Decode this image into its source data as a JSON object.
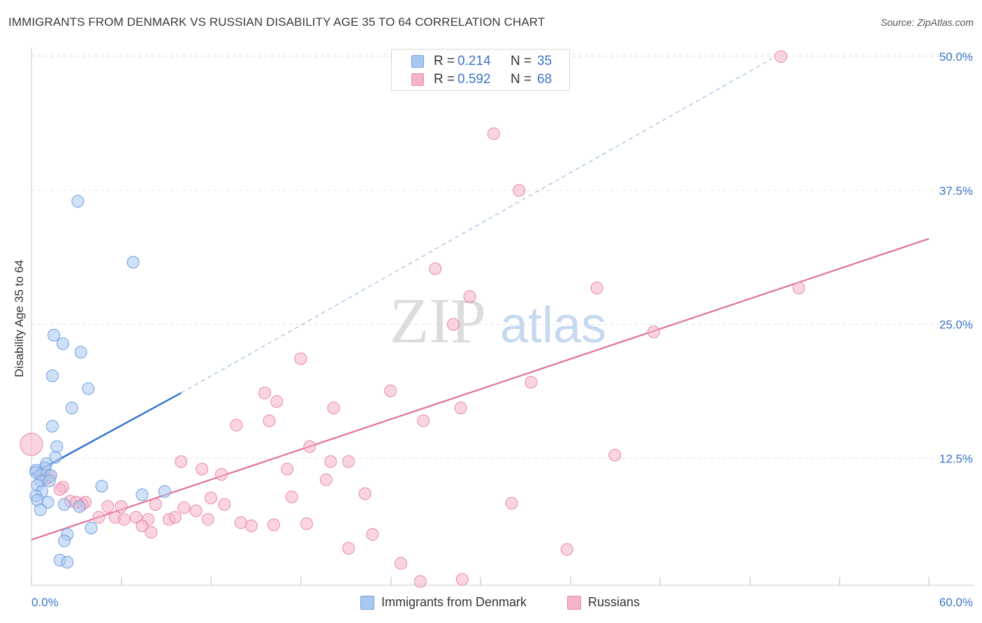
{
  "title": "IMMIGRANTS FROM DENMARK VS RUSSIAN DISABILITY AGE 35 TO 64 CORRELATION CHART",
  "source": "Source: ZipAtlas.com",
  "watermark": {
    "zip": "ZIP",
    "atlas": "atlas"
  },
  "legend": {
    "rows": [
      {
        "r_label": "R =",
        "r_value": "0.214",
        "n_label": "N =",
        "n_value": "35"
      },
      {
        "r_label": "R =",
        "r_value": "0.592",
        "n_label": "N =",
        "n_value": "68"
      }
    ]
  },
  "bottom_legend": {
    "items": [
      {
        "label": "Immigrants from Denmark"
      },
      {
        "label": "Russians"
      }
    ]
  },
  "colors": {
    "blue_fill": "#a9c8f0",
    "blue_stroke": "#6f9fe0",
    "blue_line": "#2f6fcf",
    "pink_fill": "#f5b3c8",
    "pink_stroke": "#e88aa8",
    "pink_line": "#e0709a",
    "tick_label": "#3b74c8",
    "grid": "#e3e3e3"
  },
  "chart_data": {
    "type": "scatter",
    "title": "IMMIGRANTS FROM DENMARK VS RUSSIAN DISABILITY AGE 35 TO 64 CORRELATION CHART",
    "xlabel": "",
    "ylabel": "Disability Age 35 to 64",
    "xlim": [
      0,
      60
    ],
    "ylim": [
      0,
      52
    ],
    "x_tick_labels": [
      "0.0%",
      "60.0%"
    ],
    "y_ticks": [
      12.5,
      25.0,
      37.5,
      50.0
    ],
    "y_tick_labels": [
      "12.5%",
      "25.0%",
      "37.5%",
      "50.0%"
    ],
    "grid": true,
    "legend_position": "top-center",
    "series": [
      {
        "name": "Immigrants from Denmark",
        "r": 0.214,
        "n": 35,
        "trend": {
          "x": [
            0.0,
            10.0
          ],
          "y": [
            11.0,
            18.6
          ],
          "dashed_extension_to": [
            49.5,
            49.8
          ]
        },
        "points": [
          [
            3.1,
            36.5
          ],
          [
            6.8,
            30.8
          ],
          [
            1.5,
            24.0
          ],
          [
            2.1,
            23.2
          ],
          [
            3.3,
            22.4
          ],
          [
            1.4,
            20.2
          ],
          [
            3.8,
            19.0
          ],
          [
            2.7,
            17.2
          ],
          [
            1.4,
            15.5
          ],
          [
            1.7,
            13.6
          ],
          [
            1.6,
            12.6
          ],
          [
            1.0,
            12.0
          ],
          [
            0.9,
            11.6
          ],
          [
            0.3,
            11.4
          ],
          [
            0.6,
            11.0
          ],
          [
            1.3,
            10.9
          ],
          [
            0.6,
            10.4
          ],
          [
            1.2,
            10.4
          ],
          [
            0.4,
            10.0
          ],
          [
            4.7,
            9.9
          ],
          [
            0.7,
            9.4
          ],
          [
            8.9,
            9.4
          ],
          [
            7.4,
            9.1
          ],
          [
            0.3,
            9.0
          ],
          [
            0.4,
            8.6
          ],
          [
            1.1,
            8.4
          ],
          [
            2.2,
            8.2
          ],
          [
            3.2,
            8.0
          ],
          [
            0.6,
            7.7
          ],
          [
            4.0,
            6.0
          ],
          [
            2.4,
            5.4
          ],
          [
            2.2,
            4.8
          ],
          [
            1.9,
            3.0
          ],
          [
            2.4,
            2.8
          ],
          [
            0.3,
            11.2
          ]
        ]
      },
      {
        "name": "Russians",
        "r": 0.592,
        "n": 68,
        "trend": {
          "x": [
            0.0,
            60.0
          ],
          "y": [
            4.9,
            33.0
          ]
        },
        "points": [
          [
            50.1,
            50.0
          ],
          [
            30.9,
            42.8
          ],
          [
            32.6,
            37.5
          ],
          [
            27.0,
            30.2
          ],
          [
            37.8,
            28.4
          ],
          [
            51.3,
            28.4
          ],
          [
            29.3,
            27.6
          ],
          [
            28.2,
            25.0
          ],
          [
            41.6,
            24.3
          ],
          [
            18.0,
            21.8
          ],
          [
            33.4,
            19.6
          ],
          [
            24.0,
            18.8
          ],
          [
            15.6,
            18.6
          ],
          [
            16.4,
            17.8
          ],
          [
            20.2,
            17.2
          ],
          [
            28.7,
            17.2
          ],
          [
            15.9,
            16.0
          ],
          [
            26.2,
            16.0
          ],
          [
            13.7,
            15.6
          ],
          [
            18.6,
            13.6
          ],
          [
            39.0,
            12.8
          ],
          [
            10.0,
            12.2
          ],
          [
            20.0,
            12.2
          ],
          [
            21.2,
            12.2
          ],
          [
            11.4,
            11.5
          ],
          [
            17.1,
            11.5
          ],
          [
            12.7,
            11.0
          ],
          [
            0.0,
            13.8
          ],
          [
            1.0,
            10.6
          ],
          [
            19.7,
            10.5
          ],
          [
            2.1,
            9.8
          ],
          [
            22.3,
            9.2
          ],
          [
            17.4,
            8.9
          ],
          [
            12.0,
            8.8
          ],
          [
            12.9,
            8.2
          ],
          [
            2.6,
            8.5
          ],
          [
            3.6,
            8.4
          ],
          [
            3.4,
            8.2
          ],
          [
            32.1,
            8.3
          ],
          [
            5.1,
            8.0
          ],
          [
            6.0,
            8.0
          ],
          [
            8.3,
            8.2
          ],
          [
            10.2,
            7.9
          ],
          [
            11.0,
            7.6
          ],
          [
            3.0,
            8.4
          ],
          [
            4.5,
            7.0
          ],
          [
            5.6,
            7.0
          ],
          [
            7.0,
            7.0
          ],
          [
            9.2,
            6.8
          ],
          [
            9.6,
            7.0
          ],
          [
            6.2,
            6.8
          ],
          [
            7.8,
            6.8
          ],
          [
            11.8,
            6.8
          ],
          [
            14.0,
            6.5
          ],
          [
            16.2,
            6.3
          ],
          [
            14.7,
            6.2
          ],
          [
            18.4,
            6.4
          ],
          [
            7.4,
            6.2
          ],
          [
            8.0,
            5.6
          ],
          [
            22.8,
            5.4
          ],
          [
            21.2,
            4.1
          ],
          [
            35.8,
            4.0
          ],
          [
            24.7,
            2.7
          ],
          [
            26.0,
            1.0
          ],
          [
            28.8,
            1.2
          ],
          [
            0.8,
            11.2
          ],
          [
            1.2,
            10.8
          ],
          [
            1.9,
            9.6
          ]
        ]
      }
    ]
  }
}
